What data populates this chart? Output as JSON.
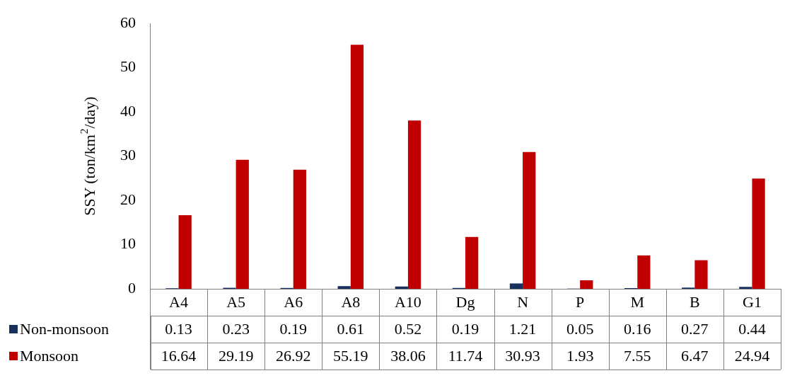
{
  "chart_data": {
    "type": "bar",
    "ylabel": "SSY (ton/km$^{2}$/day)",
    "categories": [
      "A4",
      "A5",
      "A6",
      "A8",
      "A10",
      "Dg",
      "N",
      "P",
      "M",
      "B",
      "G1"
    ],
    "series": [
      {
        "name": "Non-monsoon",
        "color": "#17305e",
        "values": [
          0.13,
          0.23,
          0.19,
          0.61,
          0.52,
          0.19,
          1.21,
          0.05,
          0.16,
          0.27,
          0.44
        ]
      },
      {
        "name": "Monsoon",
        "color": "#c00000",
        "values": [
          16.64,
          29.19,
          26.92,
          55.19,
          38.06,
          11.74,
          30.93,
          1.93,
          7.55,
          6.47,
          24.94
        ]
      }
    ],
    "ylim": [
      0,
      60
    ],
    "yticks": [
      0,
      10,
      20,
      30,
      40,
      50,
      60
    ],
    "grid": false,
    "legend": "bottom",
    "data_labels": true
  }
}
